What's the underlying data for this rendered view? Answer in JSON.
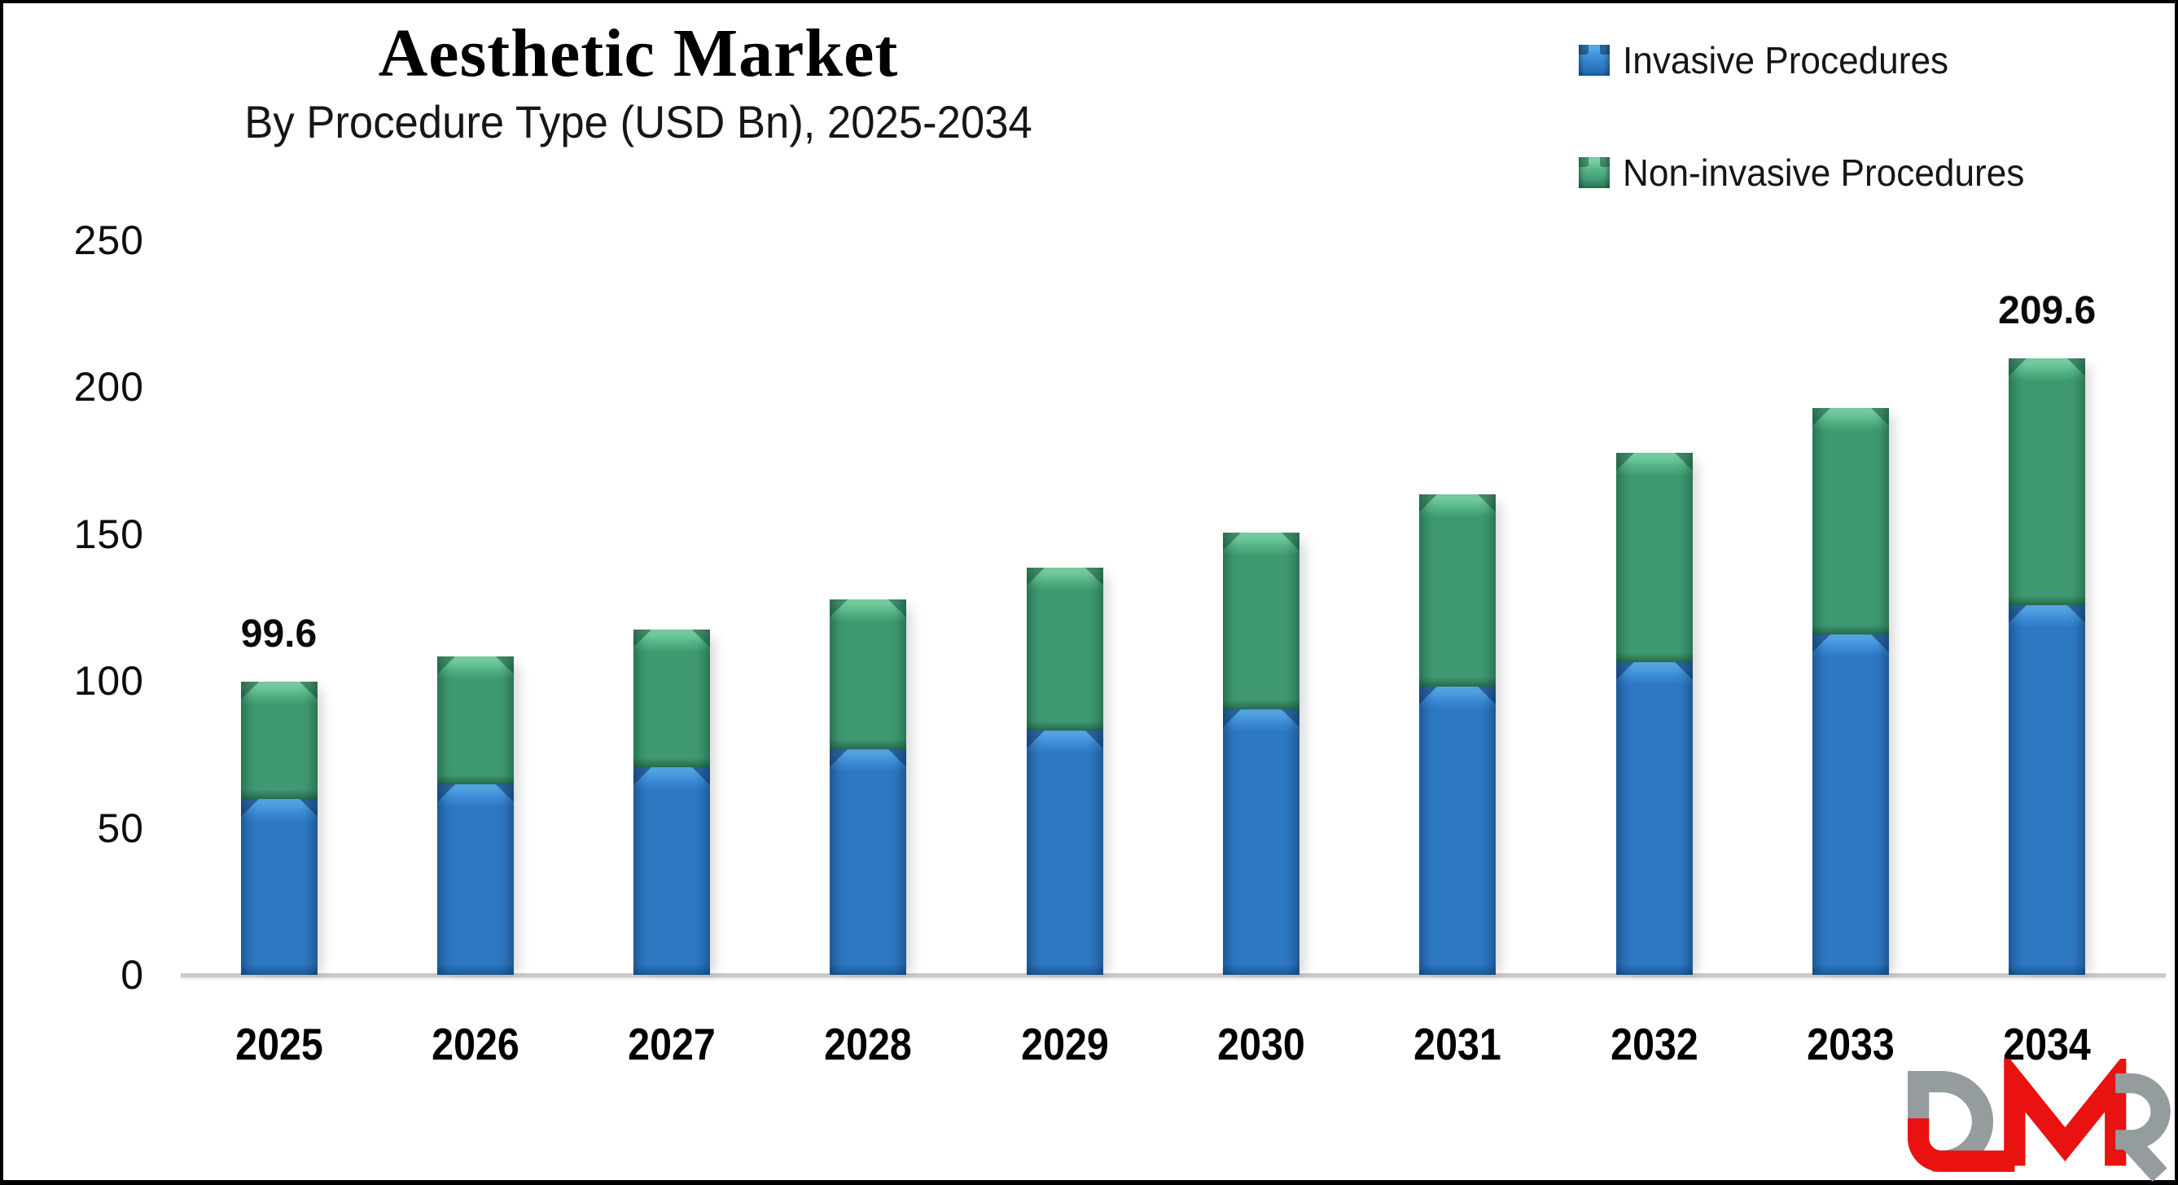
{
  "header": {
    "title": "Aesthetic Market",
    "subtitle": "By Procedure Type (USD Bn), 2025-2034"
  },
  "legend": {
    "position": "top-right",
    "items": [
      {
        "label": "Invasive Procedures",
        "color": "#2e78c2"
      },
      {
        "label": "Non-invasive Procedures",
        "color": "#3f9a72"
      }
    ]
  },
  "chart_data": {
    "type": "bar",
    "stacked": true,
    "title": "Aesthetic Market",
    "subtitle": "By Procedure Type (USD Bn), 2025-2034",
    "xlabel": "",
    "ylabel": "",
    "units": "USD Bn",
    "categories": [
      "2025",
      "2026",
      "2027",
      "2028",
      "2029",
      "2030",
      "2031",
      "2032",
      "2033",
      "2034"
    ],
    "series": [
      {
        "name": "Invasive Procedures",
        "color": "#2e78c2",
        "values": [
          59.8,
          64.9,
          70.5,
          76.6,
          83.1,
          90.3,
          98.1,
          106.5,
          115.7,
          125.8
        ]
      },
      {
        "name": "Non-invasive Procedures",
        "color": "#3f9a72",
        "values": [
          39.8,
          43.3,
          47.0,
          51.0,
          55.5,
          60.2,
          65.4,
          71.1,
          77.2,
          83.8
        ]
      }
    ],
    "totals": [
      99.6,
      108.2,
      117.5,
      127.6,
      138.6,
      150.5,
      163.5,
      177.6,
      192.9,
      209.6
    ],
    "data_labels": [
      {
        "category": "2025",
        "text": "99.6"
      },
      {
        "category": "2034",
        "text": "209.6"
      }
    ],
    "y_ticks": [
      0,
      50,
      100,
      150,
      200,
      250
    ],
    "ylim": [
      0,
      250
    ],
    "grid": false,
    "legend_position": "top-right"
  },
  "axis": {
    "line_color": "#c9c9c9"
  },
  "logo": {
    "text": "DMR",
    "red": "#ea1111",
    "gray": "#949c9e"
  }
}
